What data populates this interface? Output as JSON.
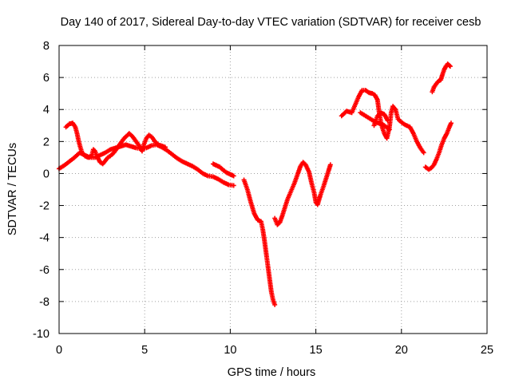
{
  "chart_data": {
    "type": "scatter",
    "title": "Day 140 of 2017, Sidereal Day-to-day VTEC variation (SDTVAR) for receiver cesb",
    "xlabel": "GPS time / hours",
    "ylabel": "SDTVAR / TECUs",
    "xlim": [
      0,
      25
    ],
    "ylim": [
      -10,
      8
    ],
    "xticks": [
      0,
      5,
      10,
      15,
      20,
      25
    ],
    "yticks": [
      -10,
      -8,
      -6,
      -4,
      -2,
      0,
      2,
      4,
      6,
      8
    ],
    "grid": true,
    "legend": "none",
    "marker": "plus",
    "series": [
      {
        "name": "SDTVAR",
        "color": "#ff0000",
        "segments": [
          [
            [
              0.0,
              0.3
            ],
            [
              0.3,
              0.5
            ],
            [
              0.6,
              0.75
            ],
            [
              0.9,
              1.0
            ],
            [
              1.2,
              1.3
            ],
            [
              1.5,
              1.15
            ],
            [
              1.8,
              1.0
            ],
            [
              2.1,
              1.0
            ],
            [
              2.4,
              1.15
            ],
            [
              2.7,
              1.3
            ],
            [
              3.0,
              1.5
            ],
            [
              3.3,
              1.6
            ],
            [
              3.6,
              1.7
            ],
            [
              3.9,
              1.8
            ],
            [
              4.2,
              1.7
            ],
            [
              4.5,
              1.6
            ],
            [
              4.8,
              1.55
            ],
            [
              5.1,
              1.6
            ],
            [
              5.4,
              1.75
            ],
            [
              5.7,
              1.8
            ],
            [
              6.0,
              1.65
            ],
            [
              6.3,
              1.45
            ],
            [
              6.6,
              1.2
            ],
            [
              6.9,
              0.95
            ],
            [
              7.2,
              0.75
            ],
            [
              7.5,
              0.6
            ],
            [
              7.8,
              0.45
            ],
            [
              8.1,
              0.25
            ],
            [
              8.4,
              0.0
            ],
            [
              8.7,
              -0.15
            ],
            [
              9.0,
              -0.2
            ],
            [
              9.3,
              -0.35
            ],
            [
              9.6,
              -0.55
            ],
            [
              9.9,
              -0.7
            ],
            [
              10.2,
              -0.75
            ]
          ],
          [
            [
              0.4,
              2.9
            ],
            [
              0.6,
              3.1
            ],
            [
              0.8,
              3.15
            ],
            [
              0.95,
              2.9
            ],
            [
              1.05,
              2.5
            ],
            [
              1.15,
              2.0
            ],
            [
              1.25,
              1.6
            ],
            [
              1.35,
              1.3
            ],
            [
              1.5,
              1.1
            ],
            [
              1.7,
              1.0
            ],
            [
              1.9,
              1.1
            ],
            [
              2.0,
              1.5
            ],
            [
              2.1,
              1.4
            ],
            [
              2.25,
              1.0
            ],
            [
              2.4,
              0.7
            ],
            [
              2.55,
              0.6
            ],
            [
              2.7,
              0.8
            ],
            [
              2.85,
              1.0
            ],
            [
              3.0,
              1.1
            ],
            [
              3.2,
              1.3
            ],
            [
              3.4,
              1.6
            ],
            [
              3.6,
              1.9
            ],
            [
              3.8,
              2.2
            ],
            [
              4.0,
              2.4
            ],
            [
              4.1,
              2.5
            ],
            [
              4.3,
              2.3
            ],
            [
              4.5,
              2.0
            ],
            [
              4.7,
              1.7
            ],
            [
              4.85,
              1.4
            ],
            [
              4.95,
              1.8
            ],
            [
              5.1,
              2.2
            ],
            [
              5.25,
              2.4
            ],
            [
              5.4,
              2.3
            ],
            [
              5.6,
              2.0
            ],
            [
              5.8,
              1.8
            ],
            [
              6.2,
              1.65
            ]
          ],
          [
            [
              9.0,
              0.6
            ],
            [
              9.2,
              0.5
            ],
            [
              9.4,
              0.4
            ],
            [
              9.6,
              0.2
            ],
            [
              9.8,
              0.05
            ],
            [
              10.0,
              -0.05
            ],
            [
              10.2,
              -0.15
            ]
          ],
          [
            [
              10.8,
              -0.4
            ],
            [
              11.0,
              -1.0
            ],
            [
              11.2,
              -1.8
            ],
            [
              11.4,
              -2.5
            ],
            [
              11.6,
              -2.9
            ],
            [
              11.8,
              -3.0
            ],
            [
              11.9,
              -3.5
            ],
            [
              12.0,
              -4.2
            ],
            [
              12.1,
              -5.0
            ],
            [
              12.2,
              -5.8
            ],
            [
              12.3,
              -6.6
            ],
            [
              12.4,
              -7.4
            ],
            [
              12.5,
              -7.9
            ],
            [
              12.6,
              -8.2
            ]
          ],
          [
            [
              12.6,
              -2.8
            ],
            [
              12.75,
              -3.2
            ],
            [
              12.9,
              -3.05
            ],
            [
              13.05,
              -2.6
            ],
            [
              13.2,
              -2.1
            ],
            [
              13.35,
              -1.6
            ],
            [
              13.55,
              -1.1
            ],
            [
              13.75,
              -0.6
            ],
            [
              13.95,
              0.0
            ],
            [
              14.1,
              0.45
            ],
            [
              14.25,
              0.7
            ],
            [
              14.4,
              0.55
            ],
            [
              14.6,
              0.1
            ],
            [
              14.75,
              -0.6
            ],
            [
              14.9,
              -1.2
            ],
            [
              15.0,
              -1.8
            ],
            [
              15.1,
              -1.95
            ],
            [
              15.25,
              -1.4
            ],
            [
              15.45,
              -0.8
            ],
            [
              15.6,
              -0.3
            ],
            [
              15.75,
              0.2
            ],
            [
              15.85,
              0.55
            ]
          ],
          [
            [
              16.5,
              3.6
            ],
            [
              16.8,
              3.9
            ],
            [
              17.1,
              3.8
            ],
            [
              17.3,
              4.3
            ],
            [
              17.5,
              4.8
            ],
            [
              17.7,
              5.2
            ],
            [
              17.9,
              5.2
            ],
            [
              18.1,
              5.05
            ],
            [
              18.3,
              5.0
            ],
            [
              18.45,
              4.9
            ],
            [
              18.6,
              4.6
            ],
            [
              18.7,
              3.8
            ],
            [
              18.8,
              3.2
            ],
            [
              18.9,
              2.8
            ],
            [
              19.0,
              2.5
            ],
            [
              19.15,
              2.2
            ],
            [
              19.3,
              2.9
            ],
            [
              19.4,
              3.8
            ],
            [
              19.5,
              4.2
            ],
            [
              19.65,
              4.0
            ],
            [
              19.8,
              3.4
            ],
            [
              20.0,
              3.2
            ],
            [
              20.2,
              3.05
            ],
            [
              20.5,
              2.9
            ],
            [
              20.7,
              2.5
            ],
            [
              20.9,
              2.0
            ],
            [
              21.1,
              1.6
            ],
            [
              21.3,
              1.3
            ]
          ],
          [
            [
              17.6,
              3.8
            ],
            [
              17.9,
              3.6
            ],
            [
              18.2,
              3.4
            ],
            [
              18.5,
              3.2
            ],
            [
              18.8,
              3.1
            ],
            [
              19.0,
              3.0
            ],
            [
              19.3,
              2.75
            ]
          ],
          [
            [
              18.4,
              3.0
            ],
            [
              18.6,
              3.6
            ],
            [
              18.8,
              3.8
            ],
            [
              19.0,
              3.7
            ],
            [
              19.2,
              3.3
            ]
          ],
          [
            [
              21.4,
              0.4
            ],
            [
              21.6,
              0.25
            ],
            [
              21.75,
              0.35
            ],
            [
              21.9,
              0.55
            ],
            [
              22.05,
              0.9
            ],
            [
              22.2,
              1.3
            ],
            [
              22.35,
              1.8
            ],
            [
              22.5,
              2.2
            ],
            [
              22.65,
              2.5
            ],
            [
              22.8,
              2.9
            ],
            [
              22.9,
              3.15
            ]
          ],
          [
            [
              21.8,
              5.1
            ],
            [
              21.9,
              5.4
            ],
            [
              22.0,
              5.55
            ],
            [
              22.1,
              5.7
            ],
            [
              22.2,
              5.8
            ],
            [
              22.3,
              5.85
            ],
            [
              22.4,
              6.2
            ],
            [
              22.5,
              6.5
            ],
            [
              22.6,
              6.7
            ],
            [
              22.7,
              6.85
            ],
            [
              22.85,
              6.7
            ]
          ]
        ]
      }
    ]
  }
}
